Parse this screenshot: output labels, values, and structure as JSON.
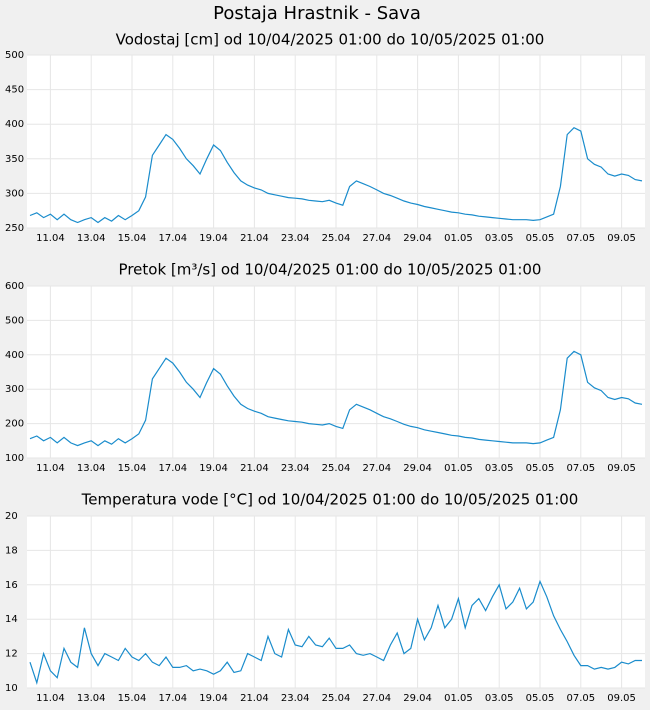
{
  "title": "Postaja Hrastnik - Sava",
  "chart_data": [
    {
      "type": "line",
      "title": "Vodostaj [cm] od 10/04/2025 01:00 do 10/05/2025 01:00",
      "x": [
        null,
        null,
        null,
        "11.04",
        null,
        null,
        null,
        null,
        null,
        "13.04",
        null,
        null,
        null,
        null,
        null,
        "15.04",
        null,
        null,
        null,
        null,
        null,
        "17.04",
        null,
        null,
        null,
        null,
        null,
        "19.04",
        null,
        null,
        null,
        null,
        null,
        "21.04",
        null,
        null,
        null,
        null,
        null,
        "23.04",
        null,
        null,
        null,
        null,
        null,
        "25.04",
        null,
        null,
        null,
        null,
        null,
        "27.04",
        null,
        null,
        null,
        null,
        null,
        "29.04",
        null,
        null,
        null,
        null,
        null,
        "01.05",
        null,
        null,
        null,
        null,
        null,
        "03.05",
        null,
        null,
        null,
        null,
        null,
        "05.05",
        null,
        null,
        null,
        null,
        null,
        "07.05",
        null,
        null,
        null,
        null,
        null,
        "09.05",
        null,
        null,
        null
      ],
      "series": [
        {
          "color": "#1a8ccc",
          "values": [
            268,
            272,
            265,
            270,
            262,
            270,
            262,
            258,
            262,
            265,
            258,
            265,
            260,
            268,
            262,
            268,
            275,
            295,
            355,
            370,
            385,
            378,
            365,
            350,
            340,
            328,
            350,
            370,
            362,
            345,
            330,
            318,
            312,
            308,
            305,
            300,
            298,
            296,
            294,
            293,
            292,
            290,
            289,
            288,
            290,
            286,
            283,
            310,
            318,
            314,
            310,
            305,
            300,
            297,
            293,
            289,
            286,
            284,
            281,
            279,
            277,
            275,
            273,
            272,
            270,
            269,
            267,
            266,
            265,
            264,
            263,
            262,
            262,
            262,
            261,
            262,
            266,
            270,
            310,
            385,
            395,
            390,
            350,
            342,
            338,
            328,
            325,
            328,
            326,
            320,
            318
          ]
        }
      ],
      "ylim": [
        250,
        500
      ],
      "yticks": [
        250,
        300,
        350,
        400,
        450,
        500
      ],
      "grid": true
    },
    {
      "type": "line",
      "title": "Pretok [m³/s] od 10/04/2025 01:00 do 10/05/2025 01:00",
      "x": [
        null,
        null,
        null,
        "11.04",
        null,
        null,
        null,
        null,
        null,
        "13.04",
        null,
        null,
        null,
        null,
        null,
        "15.04",
        null,
        null,
        null,
        null,
        null,
        "17.04",
        null,
        null,
        null,
        null,
        null,
        "19.04",
        null,
        null,
        null,
        null,
        null,
        "21.04",
        null,
        null,
        null,
        null,
        null,
        "23.04",
        null,
        null,
        null,
        null,
        null,
        "25.04",
        null,
        null,
        null,
        null,
        null,
        "27.04",
        null,
        null,
        null,
        null,
        null,
        "29.04",
        null,
        null,
        null,
        null,
        null,
        "01.05",
        null,
        null,
        null,
        null,
        null,
        "03.05",
        null,
        null,
        null,
        null,
        null,
        "05.05",
        null,
        null,
        null,
        null,
        null,
        "07.05",
        null,
        null,
        null,
        null,
        null,
        "09.05",
        null,
        null,
        null
      ],
      "series": [
        {
          "color": "#1a8ccc",
          "values": [
            156,
            164,
            150,
            160,
            144,
            160,
            144,
            136,
            144,
            150,
            136,
            150,
            140,
            156,
            144,
            156,
            170,
            210,
            330,
            360,
            390,
            376,
            350,
            320,
            300,
            276,
            320,
            360,
            344,
            310,
            280,
            256,
            244,
            236,
            230,
            220,
            216,
            212,
            208,
            206,
            204,
            200,
            198,
            196,
            200,
            192,
            186,
            240,
            256,
            248,
            240,
            230,
            220,
            214,
            206,
            198,
            192,
            188,
            182,
            178,
            174,
            170,
            166,
            164,
            160,
            158,
            154,
            152,
            150,
            148,
            146,
            144,
            144,
            144,
            142,
            144,
            152,
            160,
            240,
            390,
            410,
            400,
            320,
            304,
            296,
            276,
            270,
            276,
            272,
            260,
            256
          ]
        }
      ],
      "ylim": [
        100,
        600
      ],
      "yticks": [
        100,
        200,
        300,
        400,
        500,
        600
      ],
      "grid": true
    },
    {
      "type": "line",
      "title": "Temperatura vode [°C] od 10/04/2025 01:00 do 10/05/2025 01:00",
      "x": [
        null,
        null,
        null,
        "11.04",
        null,
        null,
        null,
        null,
        null,
        "13.04",
        null,
        null,
        null,
        null,
        null,
        "15.04",
        null,
        null,
        null,
        null,
        null,
        "17.04",
        null,
        null,
        null,
        null,
        null,
        "19.04",
        null,
        null,
        null,
        null,
        null,
        "21.04",
        null,
        null,
        null,
        null,
        null,
        "23.04",
        null,
        null,
        null,
        null,
        null,
        "25.04",
        null,
        null,
        null,
        null,
        null,
        "27.04",
        null,
        null,
        null,
        null,
        null,
        "29.04",
        null,
        null,
        null,
        null,
        null,
        "01.05",
        null,
        null,
        null,
        null,
        null,
        "03.05",
        null,
        null,
        null,
        null,
        null,
        "05.05",
        null,
        null,
        null,
        null,
        null,
        "07.05",
        null,
        null,
        null,
        null,
        null,
        "09.05",
        null,
        null,
        null
      ],
      "series": [
        {
          "color": "#1a8ccc",
          "values": [
            11.5,
            10.3,
            12.0,
            11.0,
            10.6,
            12.3,
            11.5,
            11.2,
            13.5,
            12.0,
            11.3,
            12.0,
            11.8,
            11.6,
            12.3,
            11.8,
            11.6,
            12.0,
            11.5,
            11.3,
            11.8,
            11.2,
            11.2,
            11.3,
            11.0,
            11.1,
            11.0,
            10.8,
            11.0,
            11.5,
            10.9,
            11.0,
            12.0,
            11.8,
            11.6,
            13.0,
            12.0,
            11.8,
            13.4,
            12.5,
            12.4,
            13.0,
            12.5,
            12.4,
            12.9,
            12.3,
            12.3,
            12.5,
            12.0,
            11.9,
            12.0,
            11.8,
            11.6,
            12.5,
            13.2,
            12.0,
            12.3,
            14.0,
            12.8,
            13.5,
            14.8,
            13.5,
            14.0,
            15.2,
            13.5,
            14.8,
            15.2,
            14.5,
            15.3,
            16.0,
            14.6,
            15.0,
            15.8,
            14.6,
            15.0,
            16.2,
            15.3,
            14.2,
            13.4,
            12.7,
            11.9,
            11.3,
            11.3,
            11.1,
            11.2,
            11.1,
            11.2,
            11.5,
            11.4,
            11.6,
            11.6
          ]
        }
      ],
      "ylim": [
        10,
        20
      ],
      "yticks": [
        10,
        12,
        14,
        16,
        18,
        20
      ],
      "grid": true
    }
  ]
}
